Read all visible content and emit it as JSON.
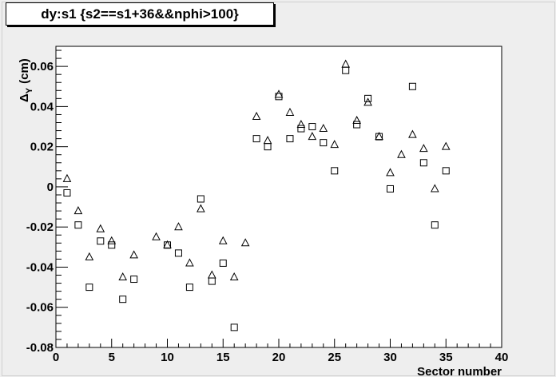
{
  "title": "dy:s1 {s2==s1+36&&nphi>100}",
  "chart_data": {
    "type": "scatter",
    "title": "dy:s1 {s2==s1+36&&nphi>100}",
    "xlabel": "Sector number",
    "ylabel": "Δ_Y (cm)",
    "ylabel_main": "Δ",
    "ylabel_sub": "Y",
    "ylabel_unit": "(cm)",
    "xlim": [
      0,
      40
    ],
    "ylim": [
      -0.08,
      0.07
    ],
    "x_ticks": [
      0,
      5,
      10,
      15,
      20,
      25,
      30,
      35,
      40
    ],
    "x_tick_labels": [
      "0",
      "5",
      "10",
      "15",
      "20",
      "25",
      "30",
      "35",
      "40"
    ],
    "y_ticks": [
      -0.08,
      -0.06,
      -0.04,
      -0.02,
      0,
      0.02,
      0.04,
      0.06
    ],
    "y_tick_labels": [
      "-0.08",
      "-0.06",
      "-0.04",
      "-0.02",
      "0",
      "0.02",
      "0.04",
      "0.06"
    ],
    "grid": false,
    "series": [
      {
        "marker": "triangle",
        "points": [
          [
            1,
            0.004
          ],
          [
            2,
            -0.012
          ],
          [
            3,
            -0.035
          ],
          [
            4,
            -0.021
          ],
          [
            5,
            -0.027
          ],
          [
            6,
            -0.045
          ],
          [
            7,
            -0.034
          ],
          [
            9,
            -0.025
          ],
          [
            10,
            -0.029
          ],
          [
            11,
            -0.02
          ],
          [
            12,
            -0.038
          ],
          [
            13,
            -0.011
          ],
          [
            14,
            -0.044
          ],
          [
            15,
            -0.027
          ],
          [
            16,
            -0.045
          ],
          [
            17,
            -0.028
          ],
          [
            18,
            0.035
          ],
          [
            19,
            0.023
          ],
          [
            20,
            0.046
          ],
          [
            21,
            0.037
          ],
          [
            22,
            0.031
          ],
          [
            23,
            0.025
          ],
          [
            24,
            0.029
          ],
          [
            25,
            0.021
          ],
          [
            26,
            0.061
          ],
          [
            27,
            0.033
          ],
          [
            28,
            0.042
          ],
          [
            29,
            0.025
          ],
          [
            30,
            0.007
          ],
          [
            31,
            0.016
          ],
          [
            32,
            0.026
          ],
          [
            33,
            0.019
          ],
          [
            34,
            -0.001
          ],
          [
            35,
            0.02
          ]
        ]
      },
      {
        "marker": "square",
        "points": [
          [
            1,
            -0.003
          ],
          [
            2,
            -0.019
          ],
          [
            3,
            -0.05
          ],
          [
            4,
            -0.027
          ],
          [
            5,
            -0.029
          ],
          [
            6,
            -0.056
          ],
          [
            7,
            -0.046
          ],
          [
            10,
            -0.029
          ],
          [
            11,
            -0.033
          ],
          [
            12,
            -0.05
          ],
          [
            13,
            -0.006
          ],
          [
            14,
            -0.047
          ],
          [
            15,
            -0.038
          ],
          [
            16,
            -0.07
          ],
          [
            18,
            0.024
          ],
          [
            19,
            0.02
          ],
          [
            20,
            0.045
          ],
          [
            21,
            0.024
          ],
          [
            22,
            0.029
          ],
          [
            23,
            0.03
          ],
          [
            24,
            0.022
          ],
          [
            25,
            0.008
          ],
          [
            26,
            0.058
          ],
          [
            27,
            0.031
          ],
          [
            28,
            0.044
          ],
          [
            29,
            0.025
          ],
          [
            30,
            -0.001
          ],
          [
            32,
            0.05
          ],
          [
            33,
            0.012
          ],
          [
            34,
            -0.019
          ],
          [
            35,
            0.008
          ]
        ]
      }
    ]
  }
}
